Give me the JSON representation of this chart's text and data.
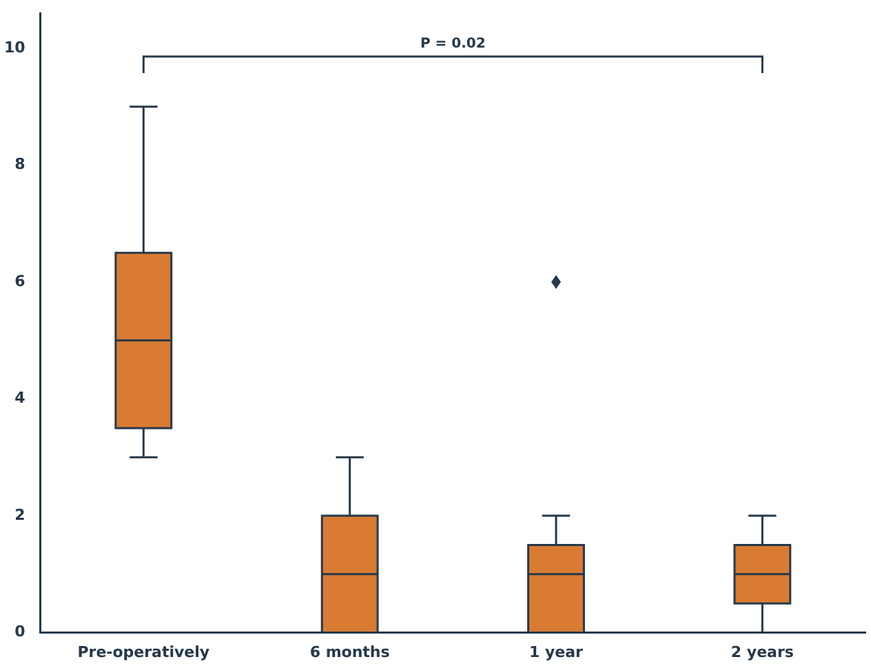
{
  "chart_data": {
    "type": "box",
    "categories": [
      "Pre-operatively",
      "6 months",
      "1 year",
      "2 years"
    ],
    "series": [
      {
        "color": "#d97b33",
        "boxes": [
          {
            "low": 3,
            "q1": 3.5,
            "median": 5,
            "q3": 6.5,
            "high": 9
          },
          {
            "low": 0,
            "q1": 0,
            "median": 1,
            "q3": 2,
            "high": 3
          },
          {
            "low": 0,
            "q1": 0,
            "median": 1,
            "q3": 1.5,
            "high": 2,
            "outliers": [
              6
            ]
          },
          {
            "low": 0,
            "q1": 0.5,
            "median": 1,
            "q3": 1.5,
            "high": 2
          }
        ]
      }
    ],
    "ylim": [
      0,
      10.6
    ],
    "yticks": [
      0,
      2,
      4,
      6,
      8,
      10
    ],
    "grid": false,
    "legend": false,
    "annotations": [
      "P = 0.02"
    ]
  }
}
